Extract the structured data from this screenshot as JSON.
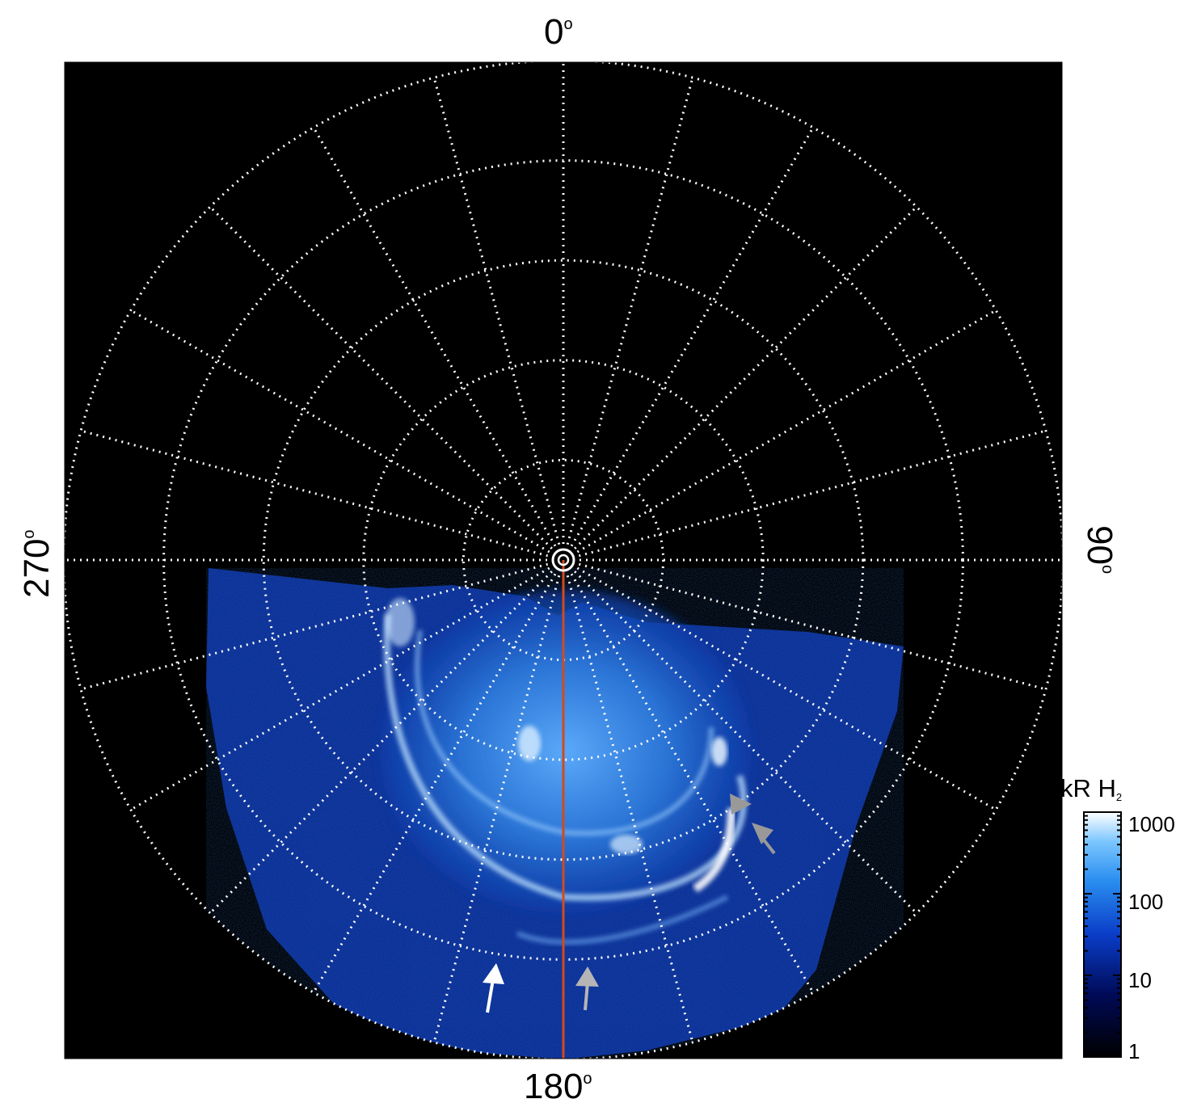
{
  "labels": {
    "top": "0",
    "bottom": "180",
    "left": "270",
    "right": "90",
    "degree_symbol": "o"
  },
  "colorbar": {
    "title_main": "kR H",
    "title_sub": "2",
    "scale": "log",
    "range": [
      1,
      1000
    ],
    "ticks": [
      {
        "value": 1000,
        "label": "1000"
      },
      {
        "value": 100,
        "label": "100"
      },
      {
        "value": 10,
        "label": "10"
      },
      {
        "value": 1,
        "label": "1"
      }
    ],
    "colors": [
      "#000000",
      "#000a55",
      "#0a3dc8",
      "#2a8ef0",
      "#7cc6ff",
      "#ffffff"
    ]
  },
  "map": {
    "background": "#000000",
    "grid_color": "#ffffff",
    "meridian_line_color": "#d24a1e",
    "emission_color": "#3d8fe6",
    "meridian_step_deg": 15,
    "circle_count": 5,
    "arrow_colors": {
      "white": "#ffffff",
      "grey": "#aaaaaa"
    }
  }
}
